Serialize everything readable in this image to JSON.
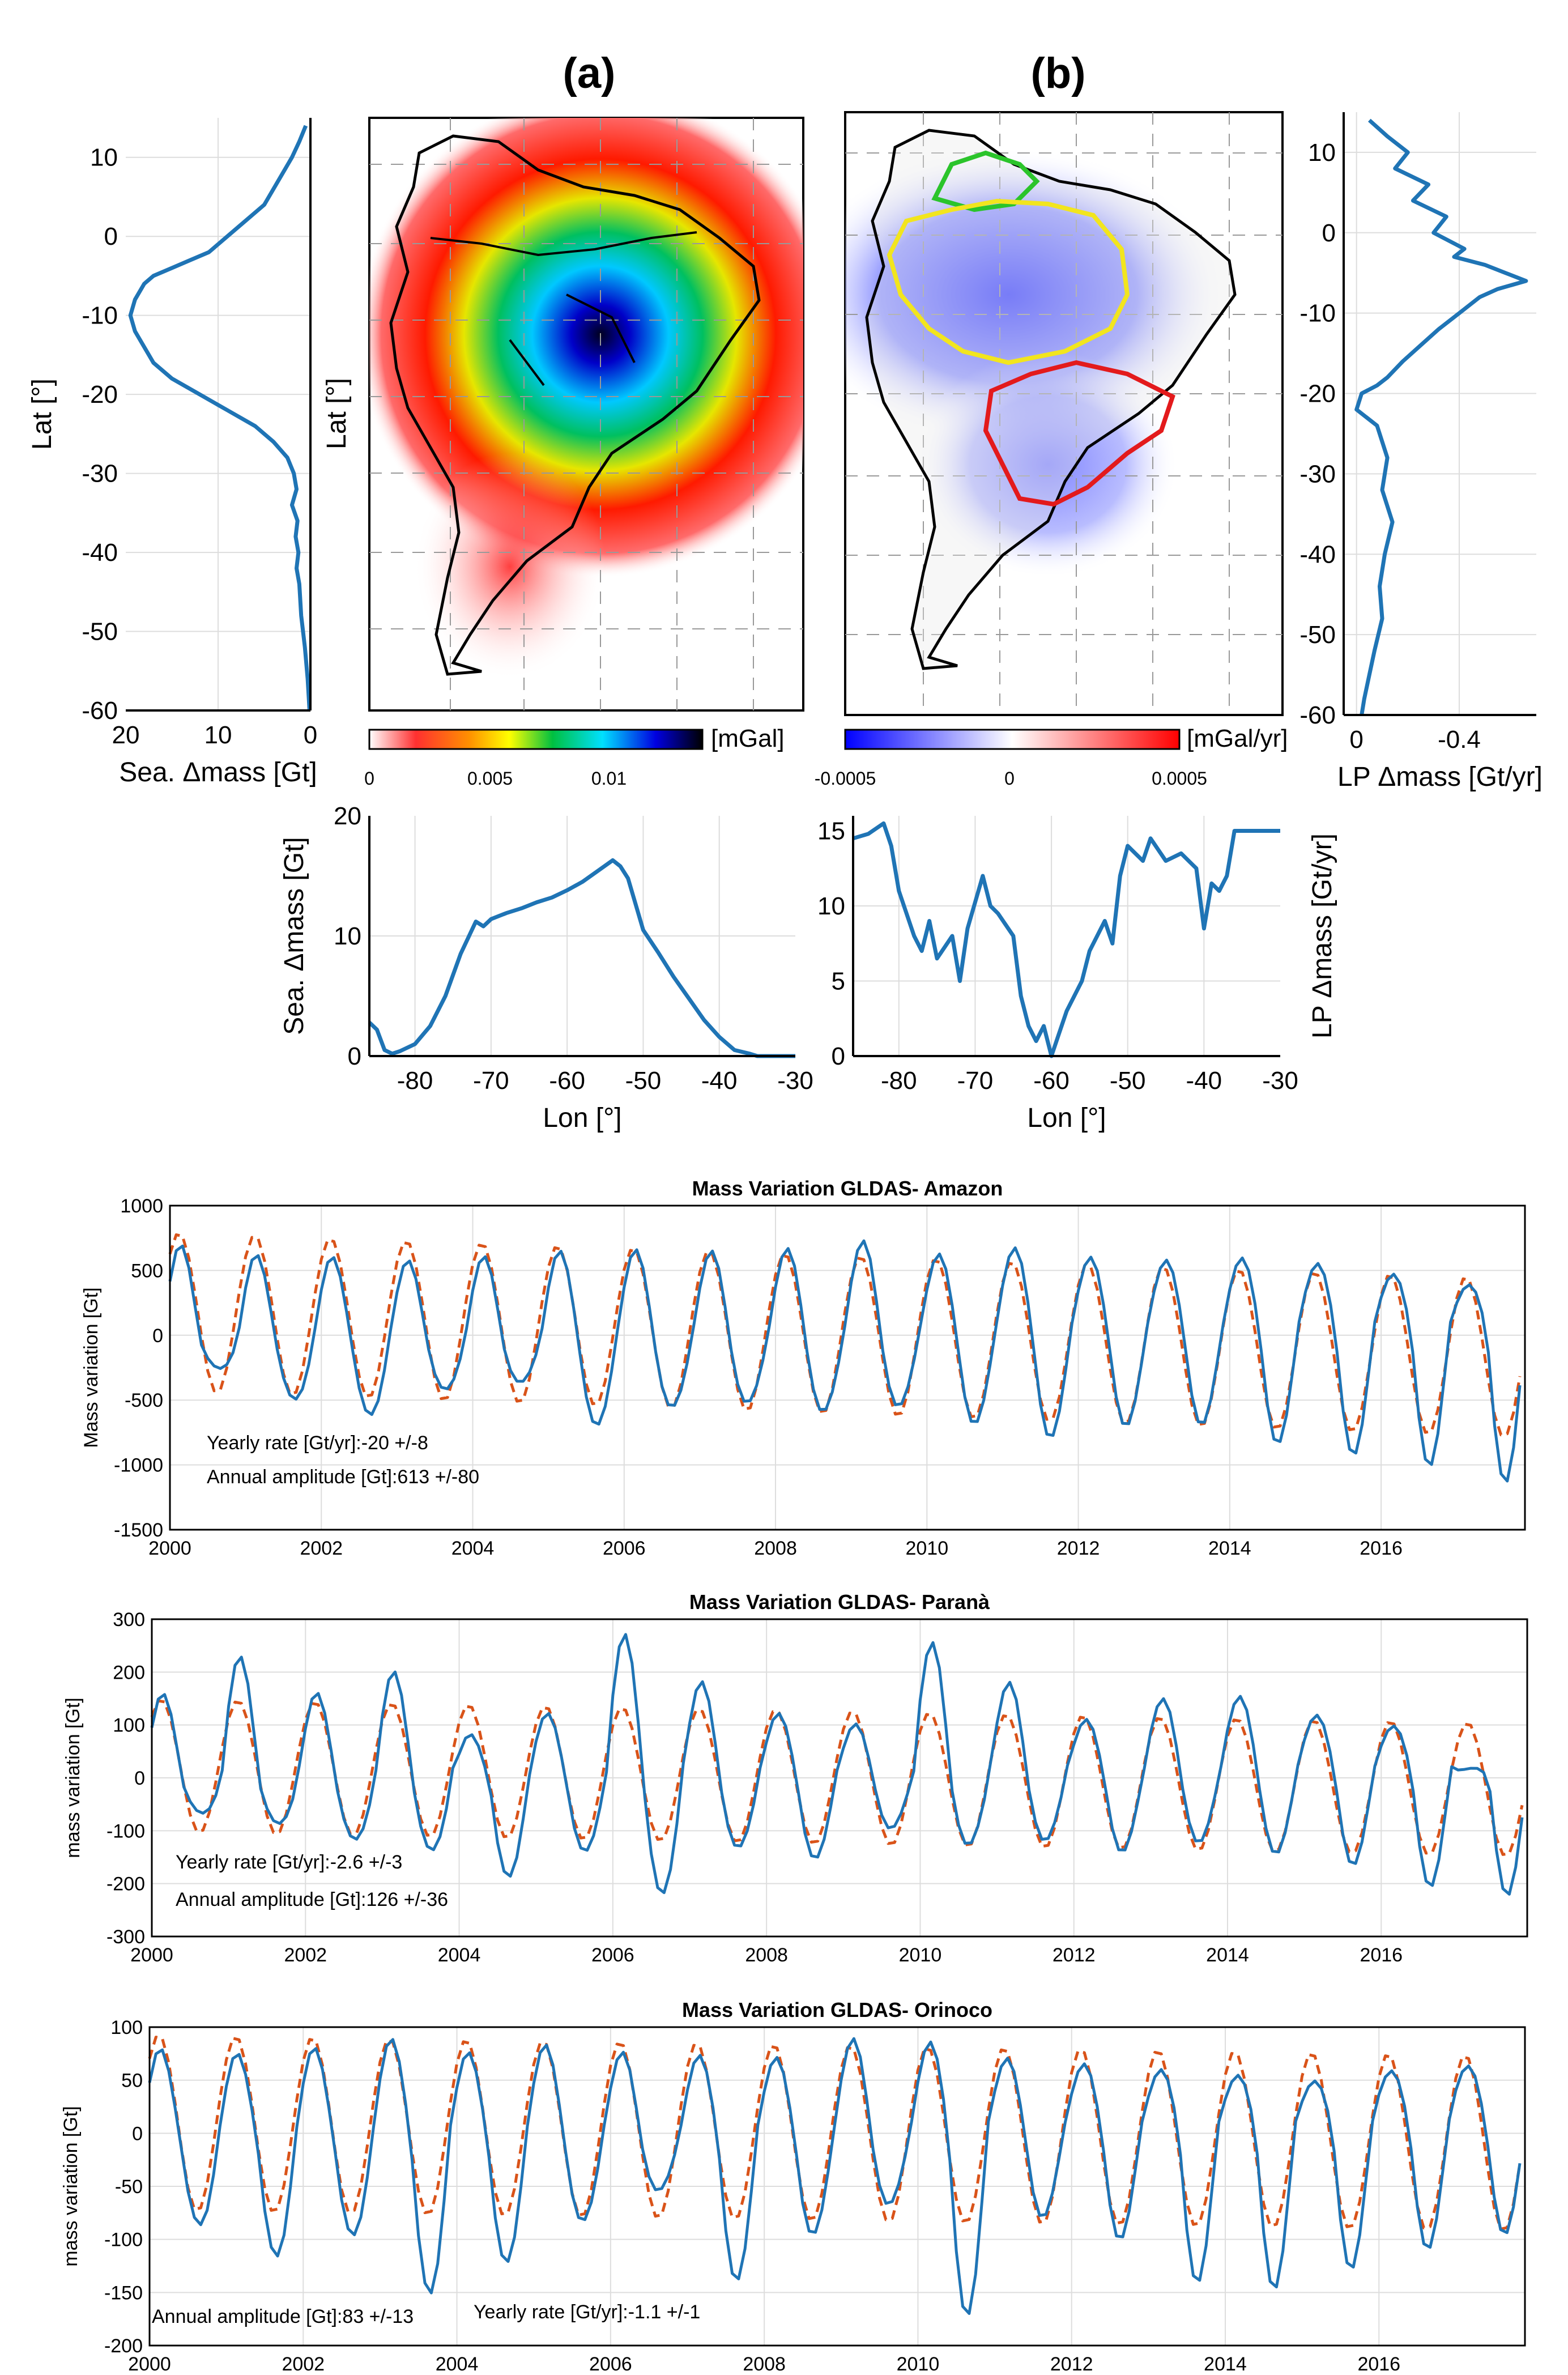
{
  "colors": {
    "series_blue": "#1f74b5",
    "series_orange": "#d95319",
    "grid": "#dddddd",
    "axis": "#000000",
    "land_outline": "#000000",
    "basin_amazon": "#f2e51e",
    "basin_parana": "#e31a1c",
    "basin_orinoco": "#2bc42b"
  },
  "panel_labels": {
    "a": "(a)",
    "b": "(b)"
  },
  "maps": {
    "a": {
      "ylabel": "Lat [°]",
      "colorbar": {
        "unit": "[mGal]",
        "ticks": [
          "0",
          "0.005",
          "0.01"
        ],
        "palette": "white-red-yellow-green-cyan-blue-black"
      }
    },
    "b": {
      "colorbar": {
        "unit": "[mGal/yr]",
        "ticks": [
          "-0.0005",
          "0",
          "0.0005"
        ],
        "palette": "blue-white-red"
      }
    }
  },
  "chart_data": [
    {
      "id": "lat-seasonal",
      "type": "line",
      "xlabel": "Sea. Δmass [Gt]",
      "ylabel": "Lat [°]",
      "xlim": [
        20,
        0
      ],
      "ylim": [
        -60,
        15
      ],
      "xticks": [
        "20",
        "10",
        "0"
      ],
      "yticks": [
        "10",
        "0",
        "-10",
        "-20",
        "-30",
        "-40",
        "-50",
        "-60"
      ],
      "x": [
        0.5,
        1.2,
        2,
        3,
        4,
        5,
        7,
        9,
        11,
        13,
        15,
        17,
        18,
        19,
        19.5,
        19,
        18,
        17,
        15,
        12,
        9,
        6,
        4,
        2.5,
        1.8,
        1.5,
        2,
        1.4,
        1.6,
        1.3,
        1.5,
        1.2,
        1.0,
        0.6,
        0.3,
        0.1
      ],
      "y": [
        14,
        12,
        10,
        8,
        6,
        4,
        2,
        0,
        -2,
        -3,
        -4,
        -5,
        -6,
        -8,
        -10,
        -12,
        -14,
        -16,
        -18,
        -20,
        -22,
        -24,
        -26,
        -28,
        -30,
        -32,
        -34,
        -36,
        -38,
        -40,
        -42,
        -44,
        -48,
        -52,
        -56,
        -60
      ]
    },
    {
      "id": "lat-longperiod",
      "type": "line",
      "xlabel": "LP Δmass [Gt/yr]",
      "xlim": [
        0.05,
        -0.7
      ],
      "ylim": [
        -60,
        15
      ],
      "xticks": [
        "0",
        "-0.4"
      ],
      "yticks": [
        "10",
        "0",
        "-10",
        "-20",
        "-30",
        "-40",
        "-50",
        "-60"
      ],
      "x": [
        -0.05,
        -0.12,
        -0.2,
        -0.15,
        -0.28,
        -0.22,
        -0.35,
        -0.3,
        -0.42,
        -0.38,
        -0.5,
        -0.58,
        -0.66,
        -0.55,
        -0.48,
        -0.4,
        -0.32,
        -0.25,
        -0.18,
        -0.12,
        -0.08,
        -0.02,
        0.0,
        -0.08,
        -0.12,
        -0.1,
        -0.14,
        -0.11,
        -0.09,
        -0.1,
        -0.07,
        -0.05,
        -0.03,
        -0.02
      ],
      "y": [
        14,
        12,
        10,
        8,
        6,
        4,
        2,
        0,
        -2,
        -3,
        -4,
        -5,
        -6,
        -7,
        -8,
        -10,
        -12,
        -14,
        -16,
        -18,
        -19,
        -20,
        -22,
        -24,
        -28,
        -32,
        -36,
        -40,
        -44,
        -48,
        -52,
        -55,
        -58,
        -60
      ]
    },
    {
      "id": "lon-seasonal",
      "type": "line",
      "xlabel": "Lon [°]",
      "ylabel": "Sea. Δmass [Gt]",
      "xlim": [
        -86,
        -30
      ],
      "ylim": [
        0,
        20
      ],
      "xticks": [
        "-80",
        "-70",
        "-60",
        "-50",
        "-40",
        "-30"
      ],
      "yticks": [
        "0",
        "10",
        "20"
      ],
      "x": [
        -86,
        -85,
        -84,
        -83,
        -82,
        -80,
        -78,
        -76,
        -74,
        -72,
        -71,
        -70,
        -68,
        -66,
        -64,
        -62,
        -60,
        -58,
        -56,
        -54,
        -53,
        -52,
        -50,
        -48,
        -46,
        -44,
        -42,
        -40,
        -38,
        -36,
        -35,
        -30
      ],
      "y": [
        2.8,
        2.2,
        0.5,
        0.2,
        0.4,
        1.0,
        2.5,
        5.0,
        8.5,
        11.2,
        10.8,
        11.4,
        11.9,
        12.3,
        12.8,
        13.2,
        13.8,
        14.5,
        15.4,
        16.3,
        15.8,
        14.8,
        10.5,
        8.6,
        6.6,
        4.8,
        3.0,
        1.6,
        0.5,
        0.2,
        0.0,
        0.0
      ]
    },
    {
      "id": "lon-longperiod",
      "type": "line",
      "xlabel": "Lon [°]",
      "ylabel": "LP Δmass [Gt/yr]",
      "xlim": [
        -86,
        -30
      ],
      "ylim": [
        0,
        16
      ],
      "xticks": [
        "-80",
        "-70",
        "-60",
        "-50",
        "-40",
        "-30"
      ],
      "yticks": [
        "0",
        "5",
        "10",
        "15"
      ],
      "x": [
        -86,
        -84,
        -82,
        -81,
        -80,
        -78,
        -77,
        -76,
        -75,
        -73,
        -72,
        -71,
        -69,
        -68,
        -67,
        -65,
        -64,
        -63,
        -62,
        -61,
        -60,
        -59,
        -58,
        -56,
        -55,
        -53,
        -52,
        -51,
        -50,
        -48,
        -47,
        -45,
        -43,
        -41,
        -40,
        -39,
        -38,
        -37,
        -36,
        -35,
        -30
      ],
      "y": [
        14.5,
        14.8,
        15.5,
        14.0,
        11.0,
        8.0,
        7.0,
        9.0,
        6.5,
        8.0,
        5.0,
        8.5,
        12.0,
        10.0,
        9.5,
        8.0,
        4.0,
        2.0,
        1.0,
        2.0,
        0.0,
        1.5,
        3.0,
        5.0,
        7.0,
        9.0,
        7.5,
        12.0,
        14.0,
        13.0,
        14.5,
        13.0,
        13.5,
        12.5,
        8.5,
        11.5,
        11.0,
        12.0,
        15.0,
        15.0,
        15.0
      ]
    },
    {
      "id": "ts-amazon",
      "type": "line",
      "title": "Mass Variation GLDAS- Amazon",
      "ylabel": "Mass variation [Gt]",
      "xlim": [
        2000,
        2017.9
      ],
      "ylim": [
        -1500,
        1000
      ],
      "xticks": [
        "2000",
        "2002",
        "2004",
        "2006",
        "2008",
        "2010",
        "2012",
        "2014",
        "2016"
      ],
      "yticks": [
        "1000",
        "500",
        "0",
        "-500",
        "-1000",
        "-1500"
      ],
      "annotations": [
        "Yearly rate [Gt/yr]:-20 +/-8",
        "Annual amplitude [Gt]:613 +/-80"
      ],
      "trend": -20,
      "amplitude": 613,
      "amplitude_peaks": [
        700,
        620,
        600,
        570,
        600,
        640,
        650,
        640,
        660,
        720,
        620,
        670,
        600,
        580,
        600,
        560,
        480,
        400
      ],
      "amplitude_troughs": [
        -320,
        -560,
        -680,
        -480,
        -420,
        -750,
        -600,
        -560,
        -620,
        -570,
        -700,
        -800,
        -700,
        -680,
        -820,
        -900,
        -980,
        -1100
      ]
    },
    {
      "id": "ts-parana",
      "type": "line",
      "title": "Mass Variation GLDAS- Paranà",
      "ylabel": "mass variation [Gt]",
      "xlim": [
        2000,
        2017.9
      ],
      "ylim": [
        -300,
        300
      ],
      "xticks": [
        "2000",
        "2002",
        "2004",
        "2006",
        "2008",
        "2010",
        "2012",
        "2014",
        "2016"
      ],
      "yticks": [
        "300",
        "200",
        "100",
        "0",
        "-100",
        "-200",
        "-300"
      ],
      "annotations": [
        "Yearly rate [Gt/yr]:-2.6 +/-3",
        "Annual amplitude [Gt]:126 +/-36"
      ],
      "trend": -2.6,
      "amplitude": 126,
      "amplitude_peaks": [
        160,
        230,
        160,
        200,
        80,
        120,
        270,
        180,
        120,
        100,
        255,
        180,
        110,
        150,
        155,
        120,
        100,
        20
      ],
      "amplitude_troughs": [
        -80,
        -100,
        -130,
        -150,
        -200,
        -150,
        -230,
        -140,
        -160,
        -100,
        -130,
        -120,
        -140,
        -120,
        -140,
        -160,
        -200,
        -215
      ]
    },
    {
      "id": "ts-orinoco",
      "type": "line",
      "title": "Mass Variation GLDAS- Orinoco",
      "ylabel": "mass variation [Gt]",
      "xlim": [
        2000,
        2017.9
      ],
      "ylim": [
        -200,
        100
      ],
      "xticks": [
        "2000",
        "2002",
        "2004",
        "2006",
        "2008",
        "2010",
        "2012",
        "2014",
        "2016"
      ],
      "yticks": [
        "100",
        "50",
        "0",
        "-50",
        "-100",
        "-150",
        "-200"
      ],
      "annotations": [
        "Annual amplitude [Gt]:83 +/-13",
        "Yearly rate [Gt/yr]:-1.1 +/-1"
      ],
      "trend": -1.1,
      "amplitude": 83,
      "amplitude_peaks": [
        80,
        75,
        80,
        88,
        75,
        82,
        75,
        72,
        70,
        88,
        85,
        70,
        65,
        60,
        55,
        50,
        60,
        65
      ],
      "amplitude_troughs": [
        -95,
        -125,
        -105,
        -160,
        -130,
        -90,
        -60,
        -145,
        -100,
        -70,
        -175,
        -80,
        -100,
        -140,
        -145,
        -125,
        -105,
        -90
      ]
    }
  ]
}
